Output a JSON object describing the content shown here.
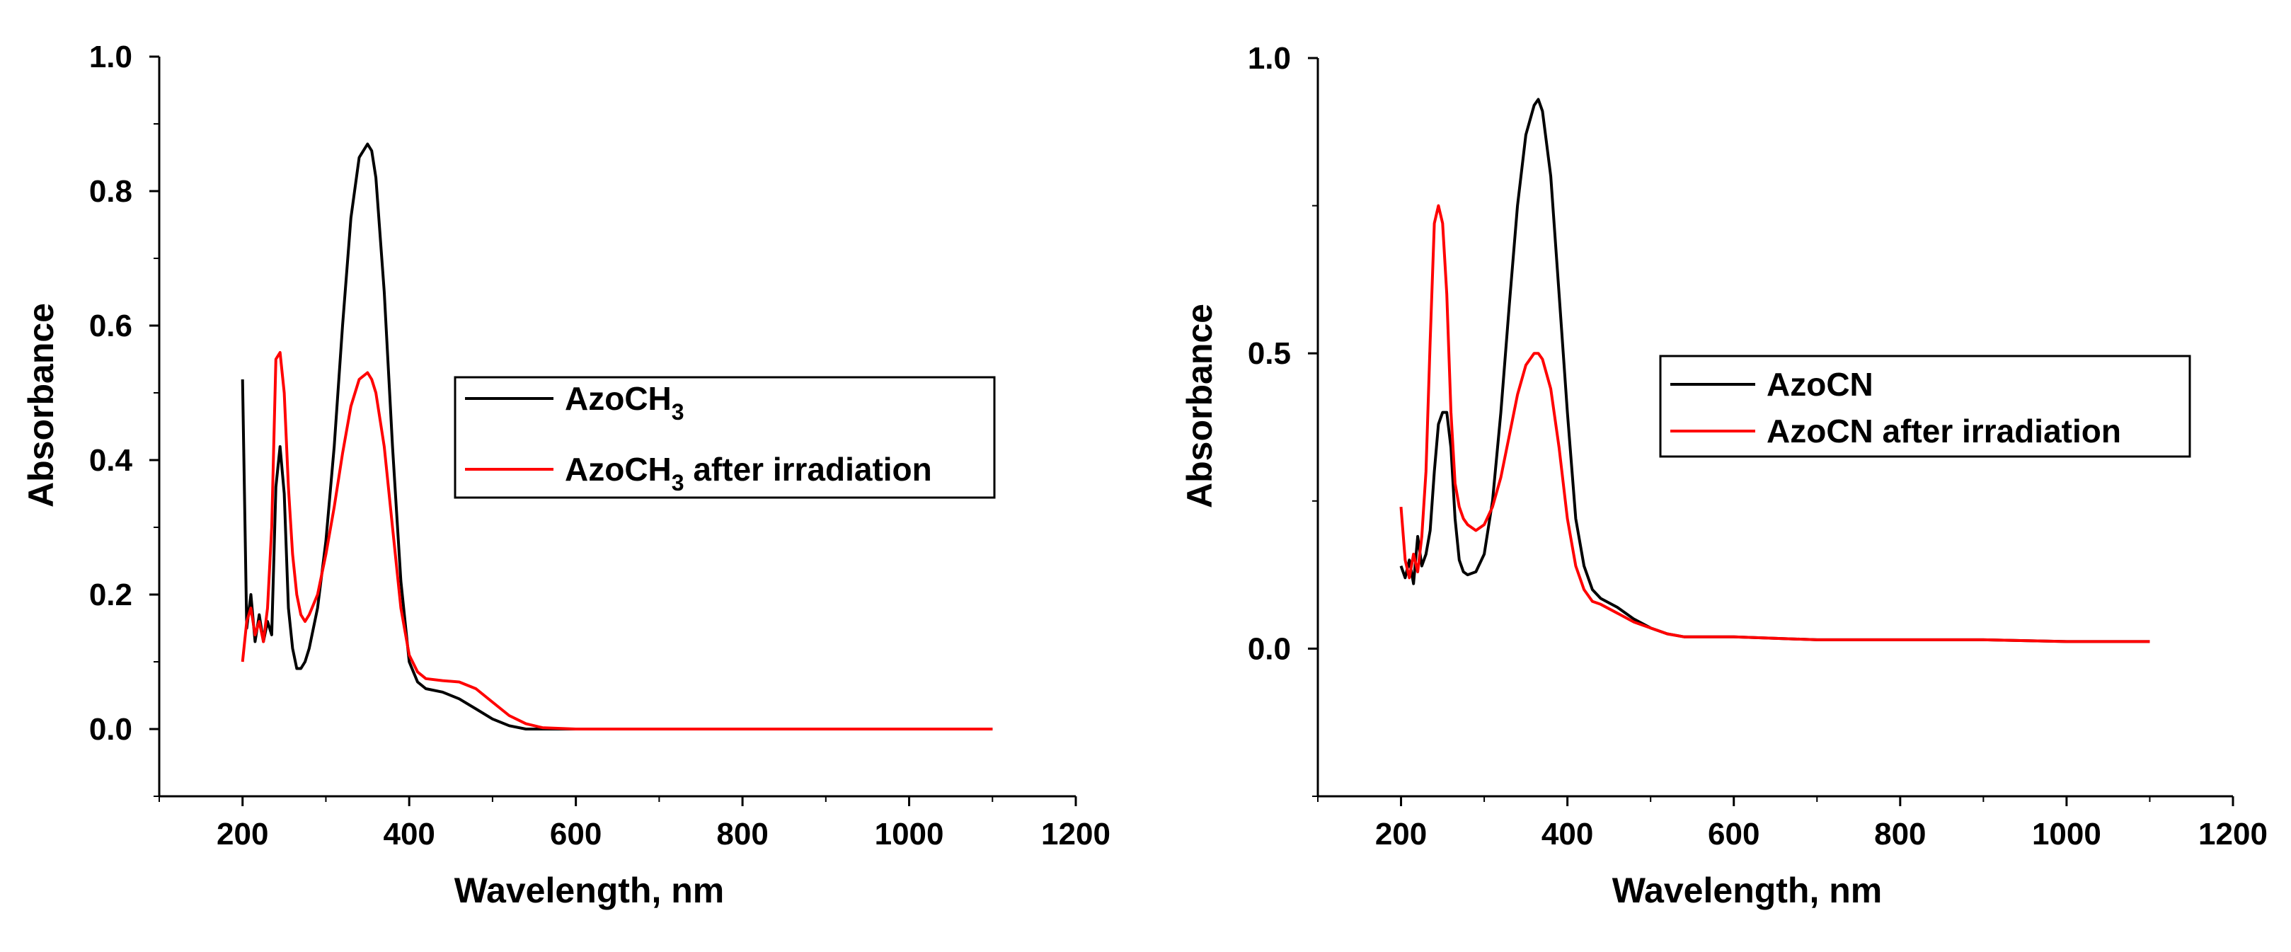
{
  "chart_data": [
    {
      "type": "line",
      "title": "",
      "xlabel": "Wavelength, nm",
      "ylabel": "Absorbance",
      "xlim": [
        100,
        1200
      ],
      "ylim": [
        -0.1,
        1.0
      ],
      "xticks": [
        "200",
        "400",
        "600",
        "800",
        "1000",
        "1200"
      ],
      "yticks": [
        "0.0",
        "0.2",
        "0.4",
        "0.6",
        "0.8",
        "1.0"
      ],
      "legend_position": "center-right",
      "series": [
        {
          "name": "AzoCH3",
          "label_main": "AzoCH",
          "label_sub": "3",
          "label_suffix": "",
          "color": "#000000",
          "x": [
            200,
            205,
            210,
            215,
            220,
            225,
            230,
            235,
            240,
            245,
            250,
            255,
            260,
            265,
            270,
            275,
            280,
            290,
            300,
            310,
            320,
            330,
            340,
            350,
            355,
            360,
            370,
            380,
            390,
            400,
            410,
            420,
            440,
            460,
            480,
            500,
            520,
            540,
            560,
            600,
            700,
            800,
            900,
            1000,
            1100
          ],
          "y": [
            0.52,
            0.15,
            0.2,
            0.13,
            0.17,
            0.13,
            0.16,
            0.14,
            0.36,
            0.42,
            0.35,
            0.18,
            0.12,
            0.09,
            0.09,
            0.1,
            0.12,
            0.18,
            0.28,
            0.42,
            0.6,
            0.76,
            0.85,
            0.87,
            0.86,
            0.82,
            0.65,
            0.42,
            0.22,
            0.1,
            0.07,
            0.06,
            0.055,
            0.045,
            0.03,
            0.015,
            0.005,
            0.0,
            0.0,
            0.0,
            0.0,
            0.0,
            0.0,
            0.0,
            0.0
          ]
        },
        {
          "name": "AzoCH3 after irradiation",
          "label_main": "AzoCH",
          "label_sub": "3",
          "label_suffix": " after irradiation",
          "color": "#ff0000",
          "x": [
            200,
            205,
            210,
            215,
            220,
            225,
            230,
            235,
            240,
            245,
            250,
            255,
            260,
            265,
            270,
            275,
            280,
            290,
            300,
            310,
            320,
            330,
            340,
            350,
            355,
            360,
            370,
            380,
            390,
            400,
            410,
            420,
            440,
            460,
            480,
            500,
            520,
            540,
            560,
            600,
            700,
            800,
            900,
            1000,
            1100
          ],
          "y": [
            0.1,
            0.16,
            0.18,
            0.14,
            0.16,
            0.13,
            0.18,
            0.3,
            0.55,
            0.56,
            0.5,
            0.36,
            0.26,
            0.2,
            0.17,
            0.16,
            0.17,
            0.2,
            0.26,
            0.33,
            0.41,
            0.48,
            0.52,
            0.53,
            0.52,
            0.5,
            0.42,
            0.3,
            0.18,
            0.11,
            0.085,
            0.075,
            0.072,
            0.07,
            0.06,
            0.04,
            0.02,
            0.008,
            0.002,
            0.0,
            0.0,
            0.0,
            0.0,
            0.0,
            0.0
          ]
        }
      ]
    },
    {
      "type": "line",
      "title": "",
      "xlabel": "Wavelength, nm",
      "ylabel": "Absorbance",
      "xlim": [
        100,
        1200
      ],
      "ylim": [
        -0.25,
        1.0
      ],
      "xticks": [
        "200",
        "400",
        "600",
        "800",
        "1000",
        "1200"
      ],
      "yticks": [
        "0.0",
        "0.5",
        "1.0"
      ],
      "legend_position": "center-right",
      "series": [
        {
          "name": "AzoCN",
          "label_main": "AzoCN",
          "label_sub": "",
          "label_suffix": "",
          "color": "#000000",
          "x": [
            200,
            205,
            210,
            215,
            220,
            225,
            230,
            235,
            240,
            245,
            250,
            255,
            260,
            265,
            270,
            275,
            280,
            290,
            300,
            310,
            320,
            330,
            340,
            350,
            360,
            365,
            370,
            380,
            390,
            400,
            410,
            420,
            430,
            440,
            460,
            480,
            500,
            520,
            540,
            560,
            600,
            700,
            800,
            900,
            1000,
            1100
          ],
          "y": [
            0.14,
            0.12,
            0.15,
            0.11,
            0.19,
            0.14,
            0.16,
            0.2,
            0.3,
            0.38,
            0.4,
            0.4,
            0.34,
            0.22,
            0.15,
            0.13,
            0.125,
            0.13,
            0.16,
            0.25,
            0.4,
            0.58,
            0.75,
            0.87,
            0.92,
            0.93,
            0.91,
            0.8,
            0.6,
            0.4,
            0.22,
            0.14,
            0.1,
            0.085,
            0.07,
            0.05,
            0.035,
            0.025,
            0.02,
            0.02,
            0.02,
            0.015,
            0.015,
            0.015,
            0.012,
            0.012
          ]
        },
        {
          "name": "AzoCN after irradiation",
          "label_main": "AzoCN after irradiation",
          "label_sub": "",
          "label_suffix": "",
          "color": "#ff0000",
          "x": [
            200,
            205,
            210,
            215,
            220,
            225,
            230,
            235,
            240,
            245,
            250,
            255,
            260,
            265,
            270,
            275,
            280,
            290,
            300,
            310,
            320,
            330,
            340,
            350,
            360,
            365,
            370,
            380,
            390,
            400,
            410,
            420,
            430,
            440,
            460,
            480,
            500,
            520,
            540,
            560,
            600,
            700,
            800,
            900,
            1000,
            1100
          ],
          "y": [
            0.24,
            0.15,
            0.12,
            0.16,
            0.13,
            0.19,
            0.3,
            0.52,
            0.72,
            0.75,
            0.72,
            0.6,
            0.4,
            0.28,
            0.24,
            0.22,
            0.21,
            0.2,
            0.21,
            0.24,
            0.29,
            0.36,
            0.43,
            0.48,
            0.5,
            0.5,
            0.49,
            0.44,
            0.34,
            0.22,
            0.14,
            0.1,
            0.08,
            0.075,
            0.06,
            0.045,
            0.035,
            0.025,
            0.02,
            0.02,
            0.02,
            0.015,
            0.015,
            0.015,
            0.012,
            0.012
          ]
        }
      ]
    }
  ]
}
